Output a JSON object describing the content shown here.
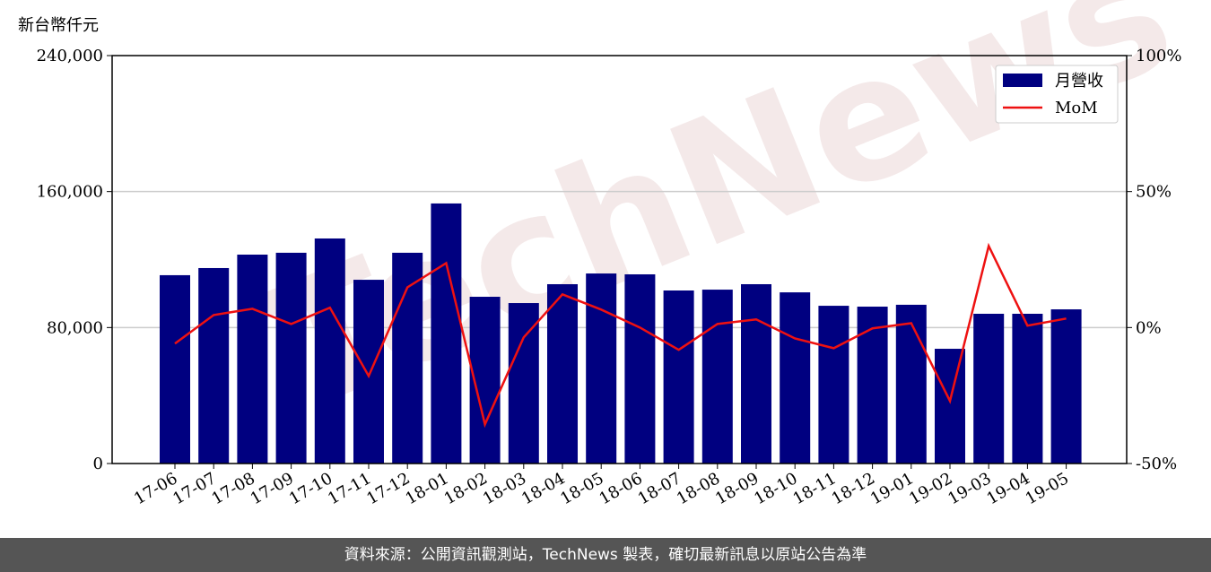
{
  "chart_data": {
    "type": "bar-line",
    "y_axis_label": "新台幣仟元",
    "watermark": "TechNews",
    "source": "資料來源：公開資訊觀測站，TechNews 製表，確切最新訊息以原站公告為準",
    "categories": [
      "17-06",
      "17-07",
      "17-08",
      "17-09",
      "17-10",
      "17-11",
      "17-12",
      "18-01",
      "18-02",
      "18-03",
      "18-04",
      "18-05",
      "18-06",
      "18-07",
      "18-08",
      "18-09",
      "18-10",
      "18-11",
      "18-12",
      "19-01",
      "19-02",
      "19-03",
      "19-04",
      "19-05"
    ],
    "series": [
      {
        "name": "月營收",
        "color": "#000080",
        "type": "bar",
        "values": [
          110800,
          115000,
          122900,
          124000,
          132400,
          108100,
          124000,
          153000,
          98100,
          94400,
          105500,
          111800,
          111300,
          101800,
          102300,
          105500,
          100700,
          92800,
          92300,
          93400,
          67500,
          88100,
          88100,
          90700
        ]
      },
      {
        "name": "MoM",
        "color": "#ee1111",
        "type": "line",
        "axis": "y2",
        "values": [
          -5.9,
          4.6,
          6.9,
          1.3,
          7.3,
          -17.8,
          14.8,
          23.7,
          -35.6,
          -3.6,
          12.2,
          6.6,
          0,
          -8.2,
          1.3,
          3.0,
          -4.0,
          -7.6,
          -0.3,
          1.6,
          -27,
          30,
          0.7,
          3.3
        ]
      }
    ],
    "ylim": [
      0,
      240000
    ],
    "yticks": [
      0,
      {
        "value": 80000,
        "label": "80,000"
      },
      {
        "value": 160000,
        "label": "160,000"
      },
      {
        "value": 240000,
        "label": "240,000"
      }
    ],
    "y2lim": [
      -50,
      100
    ],
    "y2ticks": [
      {
        "value": -50,
        "label": "-50%"
      },
      {
        "value": 0,
        "label": "0%"
      },
      {
        "value": 50,
        "label": "50%"
      },
      {
        "value": 100,
        "label": "100%"
      }
    ],
    "grid": true,
    "legend": "upper right"
  }
}
